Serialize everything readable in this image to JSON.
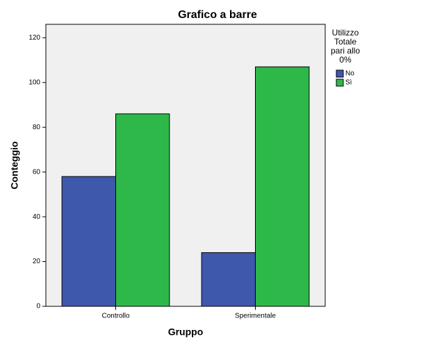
{
  "chart_data": {
    "type": "bar",
    "title": "Grafico a barre",
    "x_label": "Gruppo",
    "y_label": "Conteggio",
    "categories": [
      "Controllo",
      "Sperimentale"
    ],
    "series": [
      {
        "name": "No",
        "color": "#3e58ac",
        "values": [
          58,
          24
        ]
      },
      {
        "name": "Sì",
        "color": "#2fb84a",
        "values": [
          86,
          107
        ]
      }
    ],
    "legend_title": [
      "Utilizzo",
      "Totale",
      "pari allo",
      "0%"
    ],
    "ylim": [
      0,
      126
    ],
    "yticks": [
      0,
      20,
      40,
      60,
      80,
      100,
      120
    ]
  }
}
